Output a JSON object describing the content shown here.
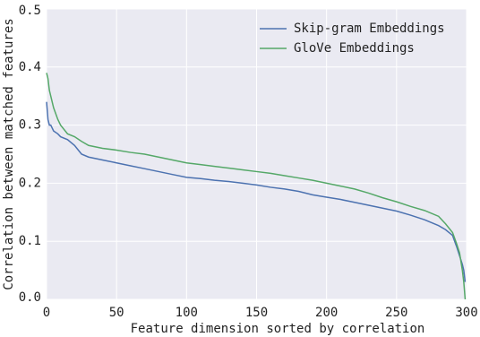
{
  "chart_data": {
    "type": "line",
    "xlabel": "Feature dimension sorted by correlation",
    "ylabel": "Correlation between matched features",
    "x": [
      0,
      1,
      2,
      3,
      5,
      8,
      10,
      15,
      20,
      25,
      30,
      40,
      50,
      60,
      70,
      80,
      90,
      100,
      110,
      120,
      130,
      140,
      150,
      160,
      170,
      180,
      190,
      200,
      210,
      220,
      230,
      240,
      250,
      260,
      270,
      280,
      285,
      290,
      293,
      295,
      297,
      298,
      299
    ],
    "series": [
      {
        "name": "Skip-gram Embeddings",
        "color": "#4c72b0",
        "values": [
          0.34,
          0.31,
          0.3,
          0.3,
          0.29,
          0.285,
          0.28,
          0.275,
          0.265,
          0.25,
          0.245,
          0.24,
          0.235,
          0.23,
          0.225,
          0.22,
          0.215,
          0.21,
          0.208,
          0.205,
          0.203,
          0.2,
          0.197,
          0.193,
          0.19,
          0.186,
          0.18,
          0.176,
          0.172,
          0.167,
          0.162,
          0.157,
          0.152,
          0.145,
          0.137,
          0.127,
          0.12,
          0.11,
          0.09,
          0.075,
          0.06,
          0.05,
          0.03
        ]
      },
      {
        "name": "GloVe Embeddings",
        "color": "#55a868",
        "values": [
          0.39,
          0.38,
          0.36,
          0.35,
          0.33,
          0.31,
          0.3,
          0.285,
          0.28,
          0.272,
          0.265,
          0.26,
          0.257,
          0.253,
          0.25,
          0.245,
          0.24,
          0.235,
          0.232,
          0.229,
          0.226,
          0.223,
          0.22,
          0.217,
          0.213,
          0.209,
          0.205,
          0.2,
          0.195,
          0.19,
          0.183,
          0.175,
          0.168,
          0.16,
          0.153,
          0.143,
          0.13,
          0.115,
          0.095,
          0.08,
          0.05,
          0.03,
          0.0
        ]
      }
    ],
    "xlim": [
      0,
      300
    ],
    "xticks": [
      0,
      50,
      100,
      150,
      200,
      250,
      300
    ],
    "ylim": [
      0,
      0.5
    ],
    "yticks": [
      {
        "value": 0,
        "label": "0.0"
      },
      0.1,
      0.2,
      0.3,
      0.4,
      0.5
    ],
    "grid": true,
    "background": "#eaeaf2",
    "legend": "upper-right"
  }
}
